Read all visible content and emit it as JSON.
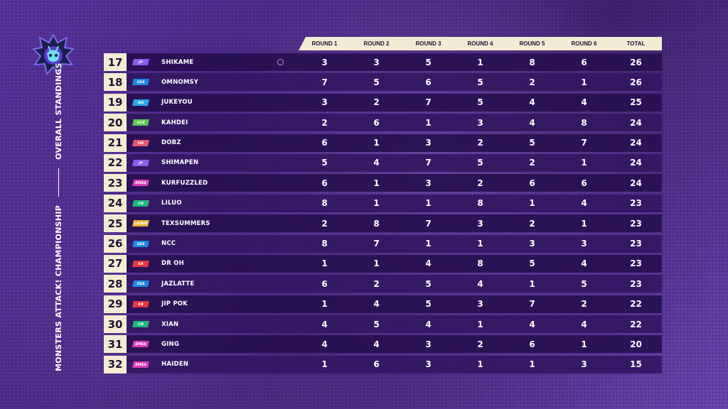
{
  "event": {
    "name": "MONSTERS ATTACK! CHAMPIONSHIP",
    "section": "OVERALL STANDINGS"
  },
  "colors": {
    "header_bg": "#f3ecd4",
    "row_bg": "#2a1158",
    "accent_purple": "#7b3fe0"
  },
  "columns": [
    "ROUND 1",
    "ROUND 2",
    "ROUND 3",
    "ROUND 4",
    "ROUND 5",
    "ROUND 6",
    "TOTAL"
  ],
  "standings": [
    {
      "rank": "17",
      "region": "JP",
      "region_color": "#8a5cf0",
      "player": "SHIKAME",
      "badge": true,
      "scores": [
        "3",
        "3",
        "5",
        "1",
        "8",
        "6",
        "26"
      ]
    },
    {
      "rank": "18",
      "region": "SEA",
      "region_color": "#1f88e5",
      "player": "OMNOMSY",
      "badge": false,
      "scores": [
        "7",
        "5",
        "6",
        "5",
        "2",
        "1",
        "26"
      ]
    },
    {
      "rank": "19",
      "region": "NA",
      "region_color": "#27a8e8",
      "player": "JUKEYOU",
      "badge": false,
      "scores": [
        "3",
        "2",
        "7",
        "5",
        "4",
        "4",
        "25"
      ]
    },
    {
      "rank": "20",
      "region": "OCE",
      "region_color": "#5cc94a",
      "player": "KAHDEI",
      "badge": false,
      "scores": [
        "2",
        "6",
        "1",
        "3",
        "4",
        "8",
        "24"
      ]
    },
    {
      "rank": "21",
      "region": "ME",
      "region_color": "#e8566e",
      "player": "DOBZ",
      "badge": false,
      "scores": [
        "6",
        "1",
        "3",
        "2",
        "5",
        "7",
        "24"
      ]
    },
    {
      "rank": "22",
      "region": "JP",
      "region_color": "#8a5cf0",
      "player": "SHIMAPEN",
      "badge": false,
      "scores": [
        "5",
        "4",
        "7",
        "5",
        "2",
        "1",
        "24"
      ]
    },
    {
      "rank": "23",
      "region": "EMEA",
      "region_color": "#d93bb6",
      "player": "KURFUZZLED",
      "badge": false,
      "scores": [
        "6",
        "1",
        "3",
        "2",
        "6",
        "6",
        "24"
      ]
    },
    {
      "rank": "24",
      "region": "CN",
      "region_color": "#20b87a",
      "player": "LILUO",
      "badge": false,
      "scores": [
        "8",
        "1",
        "1",
        "8",
        "1",
        "4",
        "23"
      ]
    },
    {
      "rank": "25",
      "region": "LATAM",
      "region_color": "#e8b339",
      "player": "TEXSUMMERS",
      "badge": false,
      "scores": [
        "2",
        "8",
        "7",
        "3",
        "2",
        "1",
        "23"
      ]
    },
    {
      "rank": "26",
      "region": "SEA",
      "region_color": "#1f88e5",
      "player": "NCC",
      "badge": false,
      "scores": [
        "8",
        "7",
        "1",
        "1",
        "3",
        "3",
        "23"
      ]
    },
    {
      "rank": "27",
      "region": "KR",
      "region_color": "#e8343e",
      "player": "DR OH",
      "badge": false,
      "scores": [
        "1",
        "1",
        "4",
        "8",
        "5",
        "4",
        "23"
      ]
    },
    {
      "rank": "28",
      "region": "SEA",
      "region_color": "#1f88e5",
      "player": "JAZLATTE",
      "badge": false,
      "scores": [
        "6",
        "2",
        "5",
        "4",
        "1",
        "5",
        "23"
      ]
    },
    {
      "rank": "29",
      "region": "KR",
      "region_color": "#e8343e",
      "player": "JIP POK",
      "badge": false,
      "scores": [
        "1",
        "4",
        "5",
        "3",
        "7",
        "2",
        "22"
      ]
    },
    {
      "rank": "30",
      "region": "CN",
      "region_color": "#20b87a",
      "player": "XIAN",
      "badge": false,
      "scores": [
        "4",
        "5",
        "4",
        "1",
        "4",
        "4",
        "22"
      ]
    },
    {
      "rank": "31",
      "region": "EMEA",
      "region_color": "#d93bb6",
      "player": "GING",
      "badge": false,
      "scores": [
        "4",
        "4",
        "3",
        "2",
        "6",
        "1",
        "20"
      ]
    },
    {
      "rank": "32",
      "region": "EMEA",
      "region_color": "#d93bb6",
      "player": "HAIDEN",
      "badge": false,
      "scores": [
        "1",
        "6",
        "3",
        "1",
        "1",
        "3",
        "15"
      ]
    }
  ]
}
